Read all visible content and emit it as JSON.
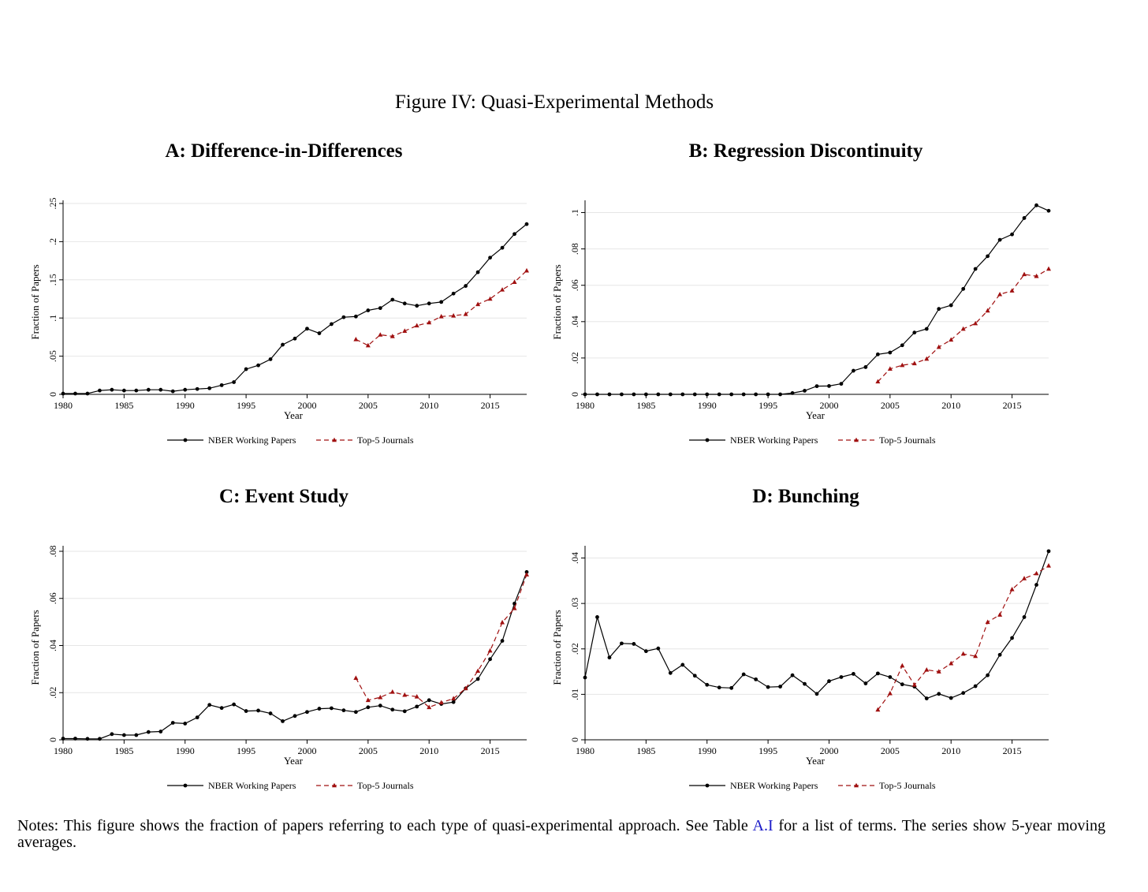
{
  "figure": {
    "title": "Figure IV: Quasi-Experimental Methods",
    "notes_before_link": "Notes: This figure shows the fraction of papers referring to each type of quasi-experimental approach.  See Table ",
    "notes_link": "A.I",
    "notes_after_link": " for a list of terms.  The series show 5-year moving averages."
  },
  "colors": {
    "nber": "#000000",
    "top5": "#a01010",
    "grid": "#e6e6e6"
  },
  "chart_data": [
    {
      "type": "line",
      "title": "A: Difference-in-Differences",
      "xlabel": "Year",
      "ylabel": "Fraction of Papers",
      "xlim": [
        1980,
        2018
      ],
      "ylim": [
        0,
        0.25
      ],
      "xticks": [
        1980,
        1985,
        1990,
        1995,
        2000,
        2005,
        2010,
        2015
      ],
      "xtick_labels": [
        "1980",
        "1985",
        "1990",
        "1995",
        "2000",
        "2005",
        "2010",
        "2015"
      ],
      "yticks": [
        0,
        0.05,
        0.1,
        0.15,
        0.2,
        0.25
      ],
      "ytick_labels": [
        "0",
        ".05",
        ".1",
        ".15",
        ".2",
        ".25"
      ],
      "grid": true,
      "legend_position": "bottom",
      "series": [
        {
          "name": "NBER Working Papers",
          "style": "solid-circle",
          "x": [
            1980,
            1981,
            1982,
            1983,
            1984,
            1985,
            1986,
            1987,
            1988,
            1989,
            1990,
            1991,
            1992,
            1993,
            1994,
            1995,
            1996,
            1997,
            1998,
            1999,
            2000,
            2001,
            2002,
            2003,
            2004,
            2005,
            2006,
            2007,
            2008,
            2009,
            2010,
            2011,
            2012,
            2013,
            2014,
            2015,
            2016,
            2017,
            2018
          ],
          "values": [
            0.001,
            0.001,
            0.001,
            0.005,
            0.006,
            0.005,
            0.005,
            0.006,
            0.006,
            0.004,
            0.006,
            0.007,
            0.008,
            0.012,
            0.016,
            0.033,
            0.038,
            0.046,
            0.065,
            0.073,
            0.086,
            0.08,
            0.092,
            0.101,
            0.102,
            0.11,
            0.113,
            0.124,
            0.119,
            0.116,
            0.119,
            0.121,
            0.132,
            0.142,
            0.16,
            0.179,
            0.192,
            0.21,
            0.223
          ]
        },
        {
          "name": "Top-5 Journals",
          "style": "dashed-triangle",
          "x": [
            2004,
            2005,
            2006,
            2007,
            2008,
            2009,
            2010,
            2011,
            2012,
            2013,
            2014,
            2015,
            2016,
            2017,
            2018
          ],
          "values": [
            0.072,
            0.064,
            0.078,
            0.076,
            0.083,
            0.09,
            0.094,
            0.102,
            0.103,
            0.105,
            0.118,
            0.125,
            0.137,
            0.147,
            0.162
          ]
        }
      ]
    },
    {
      "type": "line",
      "title": "B: Regression Discontinuity",
      "xlabel": "Year",
      "ylabel": "Fraction of Papers",
      "xlim": [
        1980,
        2018
      ],
      "ylim": [
        0,
        0.105
      ],
      "xticks": [
        1980,
        1985,
        1990,
        1995,
        2000,
        2005,
        2010,
        2015
      ],
      "xtick_labels": [
        "1980",
        "1985",
        "1990",
        "1995",
        "2000",
        "2005",
        "2010",
        "2015"
      ],
      "yticks": [
        0,
        0.02,
        0.04,
        0.06,
        0.08,
        0.1
      ],
      "ytick_labels": [
        "0",
        ".02",
        ".04",
        ".06",
        ".08",
        ".1"
      ],
      "grid": true,
      "legend_position": "bottom",
      "series": [
        {
          "name": "NBER Working Papers",
          "style": "solid-circle",
          "x": [
            1980,
            1981,
            1982,
            1983,
            1984,
            1985,
            1986,
            1987,
            1988,
            1989,
            1990,
            1991,
            1992,
            1993,
            1994,
            1995,
            1996,
            1997,
            1998,
            1999,
            2000,
            2001,
            2002,
            2003,
            2004,
            2005,
            2006,
            2007,
            2008,
            2009,
            2010,
            2011,
            2012,
            2013,
            2014,
            2015,
            2016,
            2017,
            2018
          ],
          "values": [
            0,
            0,
            0,
            0,
            0,
            0,
            0,
            0,
            0,
            0,
            0,
            0,
            0,
            0,
            0,
            0,
            0,
            0.0007,
            0.002,
            0.0045,
            0.0046,
            0.0058,
            0.013,
            0.015,
            0.022,
            0.023,
            0.027,
            0.034,
            0.036,
            0.047,
            0.049,
            0.058,
            0.069,
            0.076,
            0.085,
            0.088,
            0.097,
            0.104,
            0.101
          ]
        },
        {
          "name": "Top-5 Journals",
          "style": "dashed-triangle",
          "x": [
            2004,
            2005,
            2006,
            2007,
            2008,
            2009,
            2010,
            2011,
            2012,
            2013,
            2014,
            2015,
            2016,
            2017,
            2018
          ],
          "values": [
            0.007,
            0.014,
            0.016,
            0.017,
            0.0195,
            0.026,
            0.03,
            0.036,
            0.039,
            0.046,
            0.055,
            0.057,
            0.066,
            0.065,
            0.069
          ]
        }
      ]
    },
    {
      "type": "line",
      "title": "C: Event Study",
      "xlabel": "Year",
      "ylabel": "Fraction of Papers",
      "xlim": [
        1980,
        2018
      ],
      "ylim": [
        0,
        0.081
      ],
      "xticks": [
        1980,
        1985,
        1990,
        1995,
        2000,
        2005,
        2010,
        2015
      ],
      "xtick_labels": [
        "1980",
        "1985",
        "1990",
        "1995",
        "2000",
        "2005",
        "2010",
        "2015"
      ],
      "yticks": [
        0,
        0.02,
        0.04,
        0.06,
        0.08
      ],
      "ytick_labels": [
        "0",
        ".02",
        ".04",
        ".06",
        ".08"
      ],
      "grid": true,
      "legend_position": "bottom",
      "series": [
        {
          "name": "NBER Working Papers",
          "style": "solid-circle",
          "x": [
            1980,
            1981,
            1982,
            1983,
            1984,
            1985,
            1986,
            1987,
            1988,
            1989,
            1990,
            1991,
            1992,
            1993,
            1994,
            1995,
            1996,
            1997,
            1998,
            1999,
            2000,
            2001,
            2002,
            2003,
            2004,
            2005,
            2006,
            2007,
            2008,
            2009,
            2010,
            2011,
            2012,
            2013,
            2014,
            2015,
            2016,
            2017,
            2018
          ],
          "values": [
            0.0005,
            0.0005,
            0.0004,
            0.0004,
            0.0024,
            0.002,
            0.002,
            0.0033,
            0.0035,
            0.0072,
            0.0069,
            0.0095,
            0.0148,
            0.0135,
            0.015,
            0.0122,
            0.0124,
            0.0112,
            0.0079,
            0.0101,
            0.0118,
            0.0132,
            0.0134,
            0.0125,
            0.0118,
            0.0138,
            0.0145,
            0.0128,
            0.0121,
            0.0141,
            0.0168,
            0.0152,
            0.016,
            0.0218,
            0.0258,
            0.0342,
            0.042,
            0.0578,
            0.0712
          ]
        },
        {
          "name": "Top-5 Journals",
          "style": "dashed-triangle",
          "x": [
            2004,
            2005,
            2006,
            2007,
            2008,
            2009,
            2010,
            2011,
            2012,
            2013,
            2014,
            2015,
            2016,
            2017,
            2018
          ],
          "values": [
            0.0262,
            0.0168,
            0.018,
            0.0203,
            0.019,
            0.0183,
            0.0138,
            0.0158,
            0.0175,
            0.0218,
            0.0292,
            0.0378,
            0.0498,
            0.0558,
            0.0701
          ]
        }
      ]
    },
    {
      "type": "line",
      "title": "D: Bunching",
      "xlabel": "Year",
      "ylabel": "Fraction of Papers",
      "xlim": [
        1980,
        2018
      ],
      "ylim": [
        0,
        0.042
      ],
      "xticks": [
        1980,
        1985,
        1990,
        1995,
        2000,
        2005,
        2010,
        2015
      ],
      "xtick_labels": [
        "1980",
        "1985",
        "1990",
        "1995",
        "2000",
        "2005",
        "2010",
        "2015"
      ],
      "yticks": [
        0,
        0.01,
        0.02,
        0.03,
        0.04
      ],
      "ytick_labels": [
        "0",
        ".01",
        ".02",
        ".03",
        ".04"
      ],
      "grid": true,
      "legend_position": "bottom",
      "series": [
        {
          "name": "NBER Working Papers",
          "style": "solid-circle",
          "x": [
            1980,
            1981,
            1982,
            1983,
            1984,
            1985,
            1986,
            1987,
            1988,
            1989,
            1990,
            1991,
            1992,
            1993,
            1994,
            1995,
            1996,
            1997,
            1998,
            1999,
            2000,
            2001,
            2002,
            2003,
            2004,
            2005,
            2006,
            2007,
            2008,
            2009,
            2010,
            2011,
            2012,
            2013,
            2014,
            2015,
            2016,
            2017,
            2018
          ],
          "values": [
            0.0137,
            0.027,
            0.0181,
            0.0212,
            0.0211,
            0.0195,
            0.0201,
            0.0147,
            0.0165,
            0.0141,
            0.0121,
            0.0115,
            0.0114,
            0.0144,
            0.0133,
            0.0116,
            0.0117,
            0.0142,
            0.0123,
            0.0101,
            0.0129,
            0.0138,
            0.0145,
            0.0124,
            0.0146,
            0.0138,
            0.0122,
            0.0117,
            0.0091,
            0.0101,
            0.0092,
            0.0103,
            0.0118,
            0.0142,
            0.0187,
            0.0224,
            0.027,
            0.0341,
            0.0415
          ]
        },
        {
          "name": "Top-5 Journals",
          "style": "dashed-triangle",
          "x": [
            2004,
            2005,
            2006,
            2007,
            2008,
            2009,
            2010,
            2011,
            2012,
            2013,
            2014,
            2015,
            2016,
            2017,
            2018
          ],
          "values": [
            0.0066,
            0.0102,
            0.0163,
            0.0121,
            0.0154,
            0.015,
            0.0168,
            0.0189,
            0.0184,
            0.0259,
            0.0275,
            0.0331,
            0.0355,
            0.0366,
            0.0383
          ]
        }
      ]
    }
  ]
}
